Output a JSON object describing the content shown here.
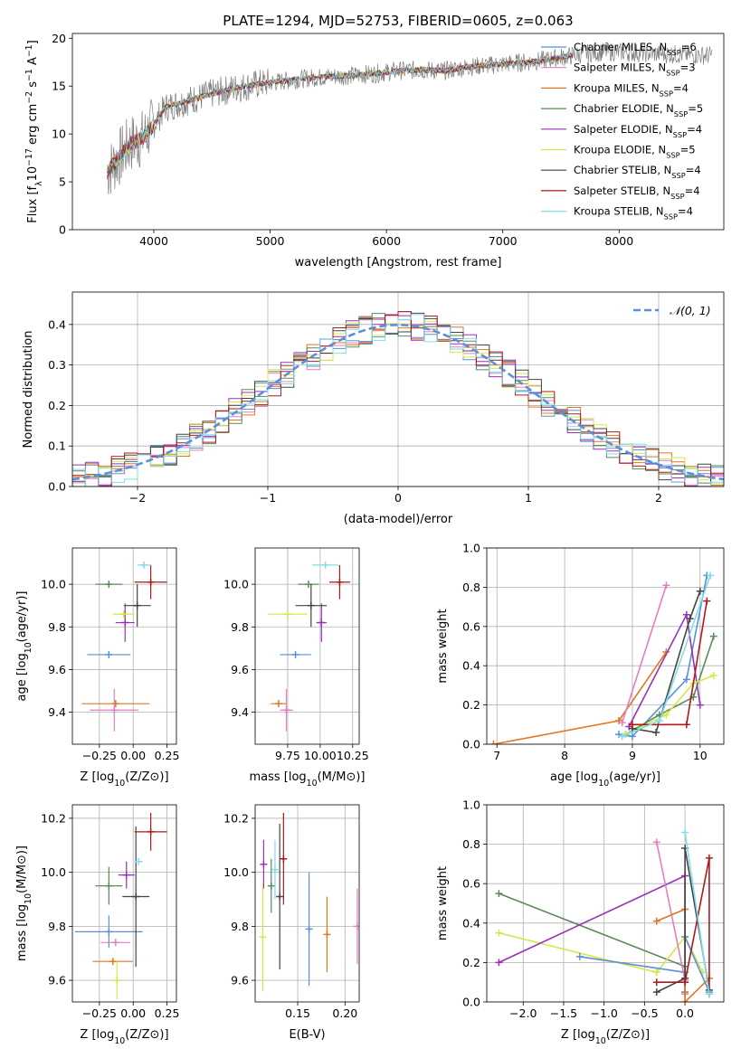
{
  "figure_title": "PLATE=1294, MJD=52753, FIBERID=0605, z=0.063",
  "colors": {
    "Chabrier MILES": "#5b8fd8",
    "Salpeter MILES": "#e37fc0",
    "Kroupa MILES": "#e07820",
    "Chabrier ELODIE": "#5a8a5a",
    "Salpeter ELODIE": "#9b30b8",
    "Kroupa ELODIE": "#d4e84a",
    "Chabrier STELIB": "#444444",
    "Salpeter STELIB": "#b01818",
    "Kroupa STELIB": "#7fdde8",
    "data": "#808080",
    "normal": "#5b8fd8"
  },
  "chart_data": [
    {
      "id": "spectrum",
      "type": "line",
      "xlabel": "wavelength [Angstrom, rest frame]",
      "ylabel": "Flux [f_λ10^{-17} erg cm^{-2} s^{-1} A^{-1}]",
      "ylabel_parts": [
        "Flux [f",
        "λ",
        "10",
        "−17",
        " erg cm",
        "−2",
        " s",
        "−1",
        " A",
        "−1",
        "]"
      ],
      "xlim": [
        3300,
        8900
      ],
      "ylim": [
        0,
        20.5
      ],
      "xticks": [
        4000,
        5000,
        6000,
        7000,
        8000
      ],
      "yticks": [
        0,
        5,
        10,
        15,
        20
      ],
      "grid": false,
      "legend_position": "right",
      "legend": [
        {
          "name": "Chabrier MILES",
          "nssp": "6"
        },
        {
          "name": "Salpeter MILES",
          "nssp": "3"
        },
        {
          "name": "Kroupa MILES",
          "nssp": "4"
        },
        {
          "name": "Chabrier ELODIE",
          "nssp": "5"
        },
        {
          "name": "Salpeter ELODIE",
          "nssp": "4"
        },
        {
          "name": "Kroupa ELODIE",
          "nssp": "5"
        },
        {
          "name": "Chabrier STELIB",
          "nssp": "4"
        },
        {
          "name": "Salpeter STELIB",
          "nssp": "4"
        },
        {
          "name": "Kroupa STELIB",
          "nssp": "4"
        }
      ],
      "nssp_text": "N",
      "nssp_sub": "SSP",
      "continuum": {
        "wavelength": [
          3600,
          3700,
          3800,
          3900,
          4000,
          4100,
          4300,
          4500,
          4700,
          4900,
          5100,
          5300,
          5500,
          5700,
          5900,
          6100,
          6300,
          6500,
          6700,
          6900,
          7100,
          7300,
          7500,
          7700,
          7900,
          8100,
          8300,
          8500,
          8800
        ],
        "flux": [
          6.0,
          7.5,
          9.0,
          9.5,
          11.0,
          12.8,
          13.5,
          14.2,
          14.8,
          15.2,
          15.5,
          15.8,
          16.0,
          16.1,
          16.3,
          16.6,
          16.7,
          16.6,
          17.0,
          17.2,
          17.4,
          17.6,
          18.0,
          18.4,
          18.6,
          18.5,
          18.4,
          18.3,
          18.2
        ]
      },
      "model_extent": {
        "start": 3600,
        "end": 7600
      }
    },
    {
      "id": "residuals",
      "type": "histogram",
      "xlabel": "(data-model)/error",
      "ylabel": "Normed distribution",
      "xlim": [
        -2.5,
        2.5
      ],
      "ylim": [
        0,
        0.48
      ],
      "xticks": [
        -2,
        -1,
        0,
        1,
        2
      ],
      "yticks": [
        0.0,
        0.1,
        0.2,
        0.3,
        0.4
      ],
      "grid": true,
      "legend_label": "𝒩(0, 1)",
      "legend_position": "top-right",
      "bin_width": 0.1
    },
    {
      "id": "age-vs-Z",
      "type": "errorbar",
      "xlabel_parts": [
        "Z [log",
        "10",
        "(Z/Z",
        "⊙",
        ")]"
      ],
      "ylabel_parts": [
        "age  [log",
        "10",
        "(age/yr)]"
      ],
      "xlim": [
        -0.45,
        0.32
      ],
      "ylim": [
        9.25,
        10.17
      ],
      "xticks": [
        -0.25,
        0.0,
        0.25
      ],
      "xticklabels": [
        "−0.25",
        "0.00",
        "0.25"
      ],
      "yticks": [
        9.4,
        9.6,
        9.8,
        10.0
      ],
      "grid": true,
      "points": [
        {
          "model": "Chabrier MILES",
          "x": -0.18,
          "xerr": 0.16,
          "y": 9.67,
          "yerr": 0.0
        },
        {
          "model": "Salpeter MILES",
          "x": -0.14,
          "xerr": 0.18,
          "y": 9.41,
          "yerr": 0.1
        },
        {
          "model": "Kroupa MILES",
          "x": -0.13,
          "xerr": 0.25,
          "y": 9.44,
          "yerr": 0.0
        },
        {
          "model": "Chabrier ELODIE",
          "x": -0.18,
          "xerr": 0.1,
          "y": 10.0,
          "yerr": 0.01
        },
        {
          "model": "Salpeter ELODIE",
          "x": -0.06,
          "xerr": 0.07,
          "y": 9.82,
          "yerr": 0.09
        },
        {
          "model": "Kroupa ELODIE",
          "x": -0.07,
          "xerr": 0.08,
          "y": 9.86,
          "yerr": 0.0
        },
        {
          "model": "Chabrier STELIB",
          "x": 0.03,
          "xerr": 0.1,
          "y": 9.9,
          "yerr": 0.1
        },
        {
          "model": "Salpeter STELIB",
          "x": 0.13,
          "xerr": 0.12,
          "y": 10.01,
          "yerr": 0.08
        },
        {
          "model": "Kroupa STELIB",
          "x": 0.08,
          "xerr": 0.05,
          "y": 10.09,
          "yerr": 0.0
        }
      ]
    },
    {
      "id": "age-vs-mass",
      "type": "errorbar",
      "xlabel_parts": [
        "mass [log",
        "10",
        "(M/M",
        "⊙",
        ")]"
      ],
      "xlim": [
        9.5,
        10.3
      ],
      "ylim": [
        9.25,
        10.17
      ],
      "xticks": [
        9.75,
        10.0,
        10.25
      ],
      "xticklabels": [
        "9.75",
        "10.00",
        "10.25"
      ],
      "yticks": [
        9.4,
        9.6,
        9.8,
        10.0
      ],
      "grid": true,
      "points": [
        {
          "model": "Chabrier MILES",
          "x": 9.81,
          "xerr": 0.12,
          "y": 9.67,
          "yerr": 0.0
        },
        {
          "model": "Salpeter MILES",
          "x": 9.74,
          "xerr": 0.05,
          "y": 9.41,
          "yerr": 0.1
        },
        {
          "model": "Kroupa MILES",
          "x": 9.68,
          "xerr": 0.06,
          "y": 9.44,
          "yerr": 0.0
        },
        {
          "model": "Chabrier ELODIE",
          "x": 9.91,
          "xerr": 0.08,
          "y": 10.0,
          "yerr": 0.0
        },
        {
          "model": "Salpeter ELODIE",
          "x": 10.01,
          "xerr": 0.04,
          "y": 9.82,
          "yerr": 0.09
        },
        {
          "model": "Kroupa ELODIE",
          "x": 9.75,
          "xerr": 0.15,
          "y": 9.86,
          "yerr": 0.0
        },
        {
          "model": "Chabrier STELIB",
          "x": 9.93,
          "xerr": 0.12,
          "y": 9.9,
          "yerr": 0.1
        },
        {
          "model": "Salpeter STELIB",
          "x": 10.15,
          "xerr": 0.08,
          "y": 10.01,
          "yerr": 0.08
        },
        {
          "model": "Kroupa STELIB",
          "x": 10.04,
          "xerr": 0.1,
          "y": 10.09,
          "yerr": 0.0
        }
      ]
    },
    {
      "id": "weight-vs-age",
      "type": "line",
      "xlabel_parts": [
        "age  [log",
        "10",
        "(age/yr)]"
      ],
      "ylabel": "mass weight",
      "xlim": [
        6.85,
        10.35
      ],
      "ylim": [
        0,
        1.0
      ],
      "xticks": [
        7,
        8,
        9,
        10
      ],
      "yticks": [
        0.0,
        0.2,
        0.4,
        0.6,
        0.8,
        1.0
      ],
      "grid": true,
      "series": [
        {
          "model": "Kroupa MILES",
          "x": [
            6.95,
            8.8,
            9.5
          ],
          "y": [
            0.0,
            0.12,
            0.47
          ]
        },
        {
          "model": "Salpeter MILES",
          "x": [
            8.85,
            9.5
          ],
          "y": [
            0.11,
            0.81
          ]
        },
        {
          "model": "Chabrier MILES",
          "x": [
            8.8,
            9.0,
            9.8,
            10.1
          ],
          "y": [
            0.05,
            0.04,
            0.33,
            0.86
          ]
        },
        {
          "model": "Chabrier ELODIE",
          "x": [
            8.9,
            9.4,
            9.9,
            10.2
          ],
          "y": [
            0.05,
            0.15,
            0.24,
            0.55
          ]
        },
        {
          "model": "Salpeter ELODIE",
          "x": [
            8.95,
            9.8,
            10.0
          ],
          "y": [
            0.09,
            0.66,
            0.2
          ]
        },
        {
          "model": "Kroupa ELODIE",
          "x": [
            8.9,
            9.5,
            9.9,
            10.2
          ],
          "y": [
            0.05,
            0.15,
            0.31,
            0.35
          ]
        },
        {
          "model": "Chabrier STELIB",
          "x": [
            9.0,
            9.35,
            9.85,
            10.0
          ],
          "y": [
            0.08,
            0.06,
            0.64,
            0.78
          ]
        },
        {
          "model": "Salpeter STELIB",
          "x": [
            9.0,
            9.8,
            10.1
          ],
          "y": [
            0.1,
            0.1,
            0.73
          ]
        },
        {
          "model": "Kroupa STELIB",
          "x": [
            8.85,
            9.4,
            10.15
          ],
          "y": [
            0.04,
            0.12,
            0.86
          ]
        }
      ]
    },
    {
      "id": "mass-vs-Z",
      "type": "errorbar",
      "xlabel_parts": [
        "Z [log",
        "10",
        "(Z/Z",
        "⊙",
        ")]"
      ],
      "ylabel_parts": [
        "mass [log",
        "10",
        "(M/M",
        "⊙",
        ")]"
      ],
      "xlim": [
        -0.45,
        0.32
      ],
      "ylim": [
        9.52,
        10.25
      ],
      "xticks": [
        -0.25,
        0.0,
        0.25
      ],
      "xticklabels": [
        "−0.25",
        "0.00",
        "0.25"
      ],
      "yticks": [
        9.6,
        9.8,
        10.0,
        10.2
      ],
      "grid": true,
      "points": [
        {
          "model": "Chabrier MILES",
          "x": -0.18,
          "xerr": 0.25,
          "y": 9.78,
          "yerr": 0.06
        },
        {
          "model": "Salpeter MILES",
          "x": -0.13,
          "xerr": 0.11,
          "y": 9.74,
          "yerr": 0.0
        },
        {
          "model": "Kroupa MILES",
          "x": -0.15,
          "xerr": 0.15,
          "y": 9.67,
          "yerr": 0.0
        },
        {
          "model": "Chabrier ELODIE",
          "x": -0.18,
          "xerr": 0.1,
          "y": 9.95,
          "yerr": 0.07
        },
        {
          "model": "Salpeter ELODIE",
          "x": -0.05,
          "xerr": 0.06,
          "y": 9.99,
          "yerr": 0.05
        },
        {
          "model": "Kroupa ELODIE",
          "x": -0.12,
          "xerr": 0.02,
          "y": 9.6,
          "yerr": 0.07
        },
        {
          "model": "Chabrier STELIB",
          "x": 0.02,
          "xerr": 0.1,
          "y": 9.91,
          "yerr": 0.26
        },
        {
          "model": "Salpeter STELIB",
          "x": 0.13,
          "xerr": 0.12,
          "y": 10.15,
          "yerr": 0.07
        },
        {
          "model": "Kroupa STELIB",
          "x": 0.04,
          "xerr": 0.03,
          "y": 10.04,
          "yerr": 0.0
        }
      ]
    },
    {
      "id": "mass-vs-ebv",
      "type": "errorbar",
      "xlabel": "E(B-V)",
      "xlim": [
        0.105,
        0.215
      ],
      "ylim": [
        9.52,
        10.25
      ],
      "xticks": [
        0.15,
        0.2
      ],
      "xticklabels": [
        "0.15",
        "0.20"
      ],
      "yticks": [
        9.6,
        9.8,
        10.0,
        10.2
      ],
      "grid": true,
      "points": [
        {
          "model": "Chabrier MILES",
          "x": 0.162,
          "y": 9.79,
          "yerr": 0.21
        },
        {
          "model": "Salpeter MILES",
          "x": 0.213,
          "y": 9.8,
          "yerr": 0.14
        },
        {
          "model": "Kroupa MILES",
          "x": 0.181,
          "y": 9.77,
          "yerr": 0.14
        },
        {
          "model": "Chabrier ELODIE",
          "x": 0.122,
          "y": 9.95,
          "yerr": 0.1
        },
        {
          "model": "Salpeter ELODIE",
          "x": 0.114,
          "y": 10.03,
          "yerr": 0.09
        },
        {
          "model": "Kroupa ELODIE",
          "x": 0.113,
          "y": 9.76,
          "yerr": 0.2
        },
        {
          "model": "Chabrier STELIB",
          "x": 0.131,
          "y": 9.91,
          "yerr": 0.27
        },
        {
          "model": "Salpeter STELIB",
          "x": 0.135,
          "y": 10.05,
          "yerr": 0.17
        },
        {
          "model": "Kroupa STELIB",
          "x": 0.126,
          "y": 10.01,
          "yerr": 0.11
        }
      ]
    },
    {
      "id": "weight-vs-Z",
      "type": "line",
      "xlabel_parts": [
        "Z [log",
        "10",
        "(Z/Z",
        "⊙",
        ")]"
      ],
      "ylabel": "mass weight",
      "xlim": [
        -2.45,
        0.48
      ],
      "ylim": [
        0,
        1.0
      ],
      "xticks": [
        -2.0,
        -1.5,
        -1.0,
        -0.5,
        0.0
      ],
      "xticklabels": [
        "−2.0",
        "−1.5",
        "−1.0",
        "−0.5",
        "0.0"
      ],
      "yticks": [
        0.0,
        0.2,
        0.4,
        0.6,
        0.8,
        1.0
      ],
      "grid": true,
      "series": [
        {
          "model": "Chabrier ELODIE",
          "x": [
            -2.3,
            0.0,
            0.0
          ],
          "y": [
            0.55,
            0.18,
            0.05
          ]
        },
        {
          "model": "Kroupa ELODIE",
          "x": [
            -2.3,
            -0.35,
            0.0,
            0.22
          ],
          "y": [
            0.35,
            0.15,
            0.33,
            0.15
          ]
        },
        {
          "model": "Salpeter ELODIE",
          "x": [
            -2.3,
            0.0,
            0.0
          ],
          "y": [
            0.2,
            0.64,
            0.04
          ]
        },
        {
          "model": "Chabrier MILES",
          "x": [
            -1.3,
            0.0,
            0.0,
            0.3
          ],
          "y": [
            0.23,
            0.15,
            0.33,
            0.05
          ]
        },
        {
          "model": "Salpeter MILES",
          "x": [
            -0.35,
            0.0,
            0.0
          ],
          "y": [
            0.81,
            0.11,
            0.04
          ]
        },
        {
          "model": "Kroupa MILES",
          "x": [
            -0.35,
            0.0,
            0.0,
            0.3
          ],
          "y": [
            0.41,
            0.47,
            0.0,
            0.12
          ]
        },
        {
          "model": "Chabrier STELIB",
          "x": [
            -0.35,
            0.0,
            0.0,
            0.3
          ],
          "y": [
            0.05,
            0.12,
            0.78,
            0.06
          ]
        },
        {
          "model": "Salpeter STELIB",
          "x": [
            -0.35,
            0.0,
            0.3,
            0.3
          ],
          "y": [
            0.1,
            0.1,
            0.73,
            0.04
          ]
        },
        {
          "model": "Kroupa STELIB",
          "x": [
            0.0,
            0.3
          ],
          "y": [
            0.86,
            0.04
          ]
        }
      ]
    }
  ]
}
